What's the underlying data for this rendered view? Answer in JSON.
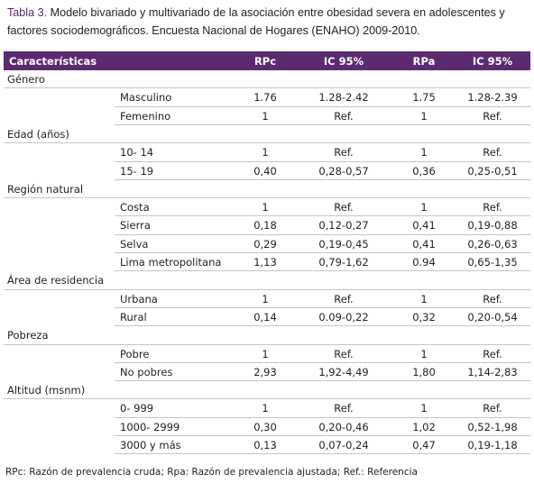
{
  "caption": {
    "label": "Tabla 3.",
    "text": "Modelo bivariado y multivariado de la asociación entre obesidad severa en adolescentes y factores sociodemográficos. Encuesta Nacional de Hogares (ENAHO) 2009-2010."
  },
  "table": {
    "header": [
      "Características",
      "RPc",
      "IC 95%",
      "RPa",
      "IC 95%"
    ],
    "groups": [
      {
        "name": "Género",
        "rows": [
          [
            "Masculino",
            "1.76",
            "1.28-2.42",
            "1.75",
            "1.28-2.39"
          ],
          [
            "Femenino",
            "1",
            "Ref.",
            "1",
            "Ref."
          ]
        ]
      },
      {
        "name": "Edad (años)",
        "rows": [
          [
            "10- 14",
            "1",
            "Ref.",
            "1",
            "Ref."
          ],
          [
            "15- 19",
            "0,40",
            "0,28-0,57",
            "0,36",
            "0,25-0,51"
          ]
        ]
      },
      {
        "name": "Región natural",
        "rows": [
          [
            "Costa",
            "1",
            "Ref.",
            "1",
            "Ref."
          ],
          [
            "Sierra",
            "0,18",
            "0,12-0,27",
            "0,41",
            "0,19-0,88"
          ],
          [
            "Selva",
            "0,29",
            "0,19-0,45",
            "0,41",
            "0,26-0,63"
          ],
          [
            "Lima metropolitana",
            "1,13",
            "0,79-1,62",
            "0.94",
            "0,65-1,35"
          ]
        ]
      },
      {
        "name": "Área de residencia",
        "rows": [
          [
            "Urbana",
            "1",
            "Ref.",
            "1",
            "Ref."
          ],
          [
            "Rural",
            "0,14",
            "0.09-0,22",
            "0,32",
            "0,20-0,54"
          ]
        ]
      },
      {
        "name": "Pobreza",
        "rows": [
          [
            "Pobre",
            "1",
            "Ref.",
            "1",
            "Ref."
          ],
          [
            "No pobres",
            "2,93",
            "1,92-4,49",
            "1,80",
            "1,14-2,83"
          ]
        ]
      },
      {
        "name": "Altitud (msnm)",
        "rows": [
          [
            "0- 999",
            "1",
            "Ref.",
            "1",
            "Ref."
          ],
          [
            "1000- 2999",
            "0,30",
            "0,20-0,46",
            "1,02",
            "0,52-1,98"
          ],
          [
            "3000 y más",
            "0,13",
            "0,07-0,24",
            "0,47",
            "0,19-1,18"
          ]
        ]
      }
    ]
  },
  "footnote": "RPc: Razón de prevalencia cruda; Rpa: Razón de prevalencia ajustada; Ref.: Referencia"
}
